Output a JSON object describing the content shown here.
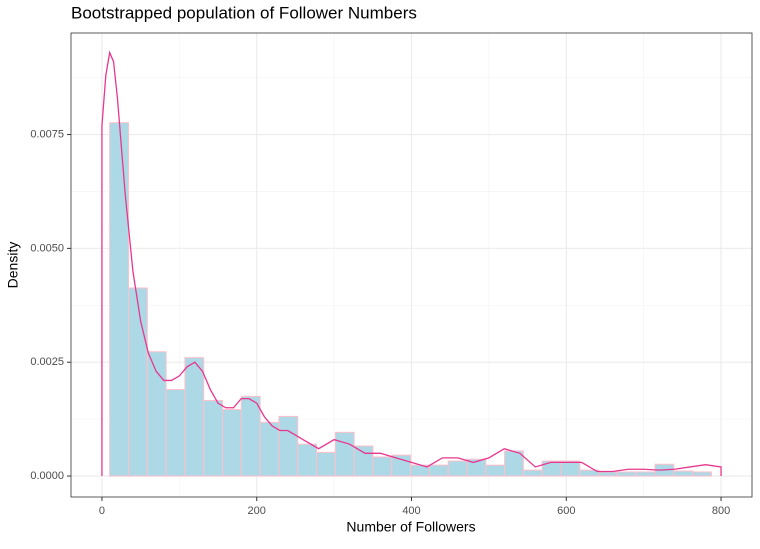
{
  "chart_data": {
    "type": "histogram",
    "title": "Bootstrapped population of Follower Numbers",
    "x_label": "Number of Followers",
    "y_label": "Density",
    "bins": [
      10,
      34.3,
      58.6,
      82.9,
      107.2,
      131.5,
      155.8,
      180.1,
      204.4,
      228.7,
      253,
      277.3,
      301.6,
      325.9,
      350.2,
      374.5,
      398.8,
      423.1,
      447.4,
      471.7,
      496,
      520.3,
      544.6,
      568.9,
      593.2,
      617.5,
      641.8,
      666.1,
      690.4,
      714.7,
      739,
      763.3,
      787.6
    ],
    "values": [
      0.00776,
      0.00413,
      0.00273,
      0.0019,
      0.0026,
      0.00166,
      0.00146,
      0.00175,
      0.00118,
      0.00131,
      0.0007,
      0.00052,
      0.00096,
      0.00066,
      0.00042,
      0.00046,
      0.00024,
      0.00024,
      0.00033,
      0.00037,
      0.00024,
      0.00055,
      0.00013,
      0.00033,
      0.00033,
      0.00013,
      9e-05,
      9e-05,
      9e-05,
      0.00026,
      0.00011,
      9e-05
    ],
    "color": "#add8e6",
    "edge_color": "#ffc0cb",
    "density": {
      "color": "#e8368f",
      "x": [
        0,
        0,
        5,
        10,
        15,
        20,
        30,
        40,
        50,
        60,
        70,
        80,
        90,
        100,
        110,
        120,
        130,
        140,
        150,
        160,
        170,
        180,
        190,
        200,
        210,
        220,
        230,
        240,
        250,
        260,
        280,
        300,
        320,
        340,
        360,
        380,
        400,
        420,
        440,
        460,
        480,
        500,
        520,
        540,
        560,
        580,
        600,
        620,
        640,
        660,
        680,
        700,
        720,
        740,
        760,
        780,
        800,
        800
      ],
      "values": [
        0,
        0.0077,
        0.0088,
        0.0093,
        0.0091,
        0.0083,
        0.0062,
        0.0045,
        0.0034,
        0.0027,
        0.0023,
        0.0021,
        0.0021,
        0.0022,
        0.0024,
        0.0025,
        0.0023,
        0.0019,
        0.0016,
        0.0015,
        0.0015,
        0.0017,
        0.0017,
        0.0016,
        0.0013,
        0.0011,
        0.001,
        0.001,
        0.0009,
        0.0008,
        0.0006,
        0.0008,
        0.0007,
        0.0005,
        0.0005,
        0.0004,
        0.0003,
        0.0002,
        0.0004,
        0.0004,
        0.0003,
        0.0004,
        0.0006,
        0.0005,
        0.0002,
        0.0003,
        0.0003,
        0.0003,
        0.0001,
        0.0001,
        0.00015,
        0.00015,
        0.00013,
        0.00015,
        0.0002,
        0.00025,
        0.0002,
        0
      ]
    },
    "xlim": [
      -40,
      840
    ],
    "ylim": [
      -0.00046,
      0.00973
    ],
    "xticks": [
      0,
      200,
      400,
      600,
      800
    ],
    "yticks": [
      {
        "value": 0,
        "label": "0.0000"
      },
      {
        "value": 0.0025,
        "label": "0.0025"
      },
      {
        "value": 0.005,
        "label": "0.0050"
      },
      {
        "value": 0.0075,
        "label": "0.0075"
      }
    ],
    "grid": true
  }
}
